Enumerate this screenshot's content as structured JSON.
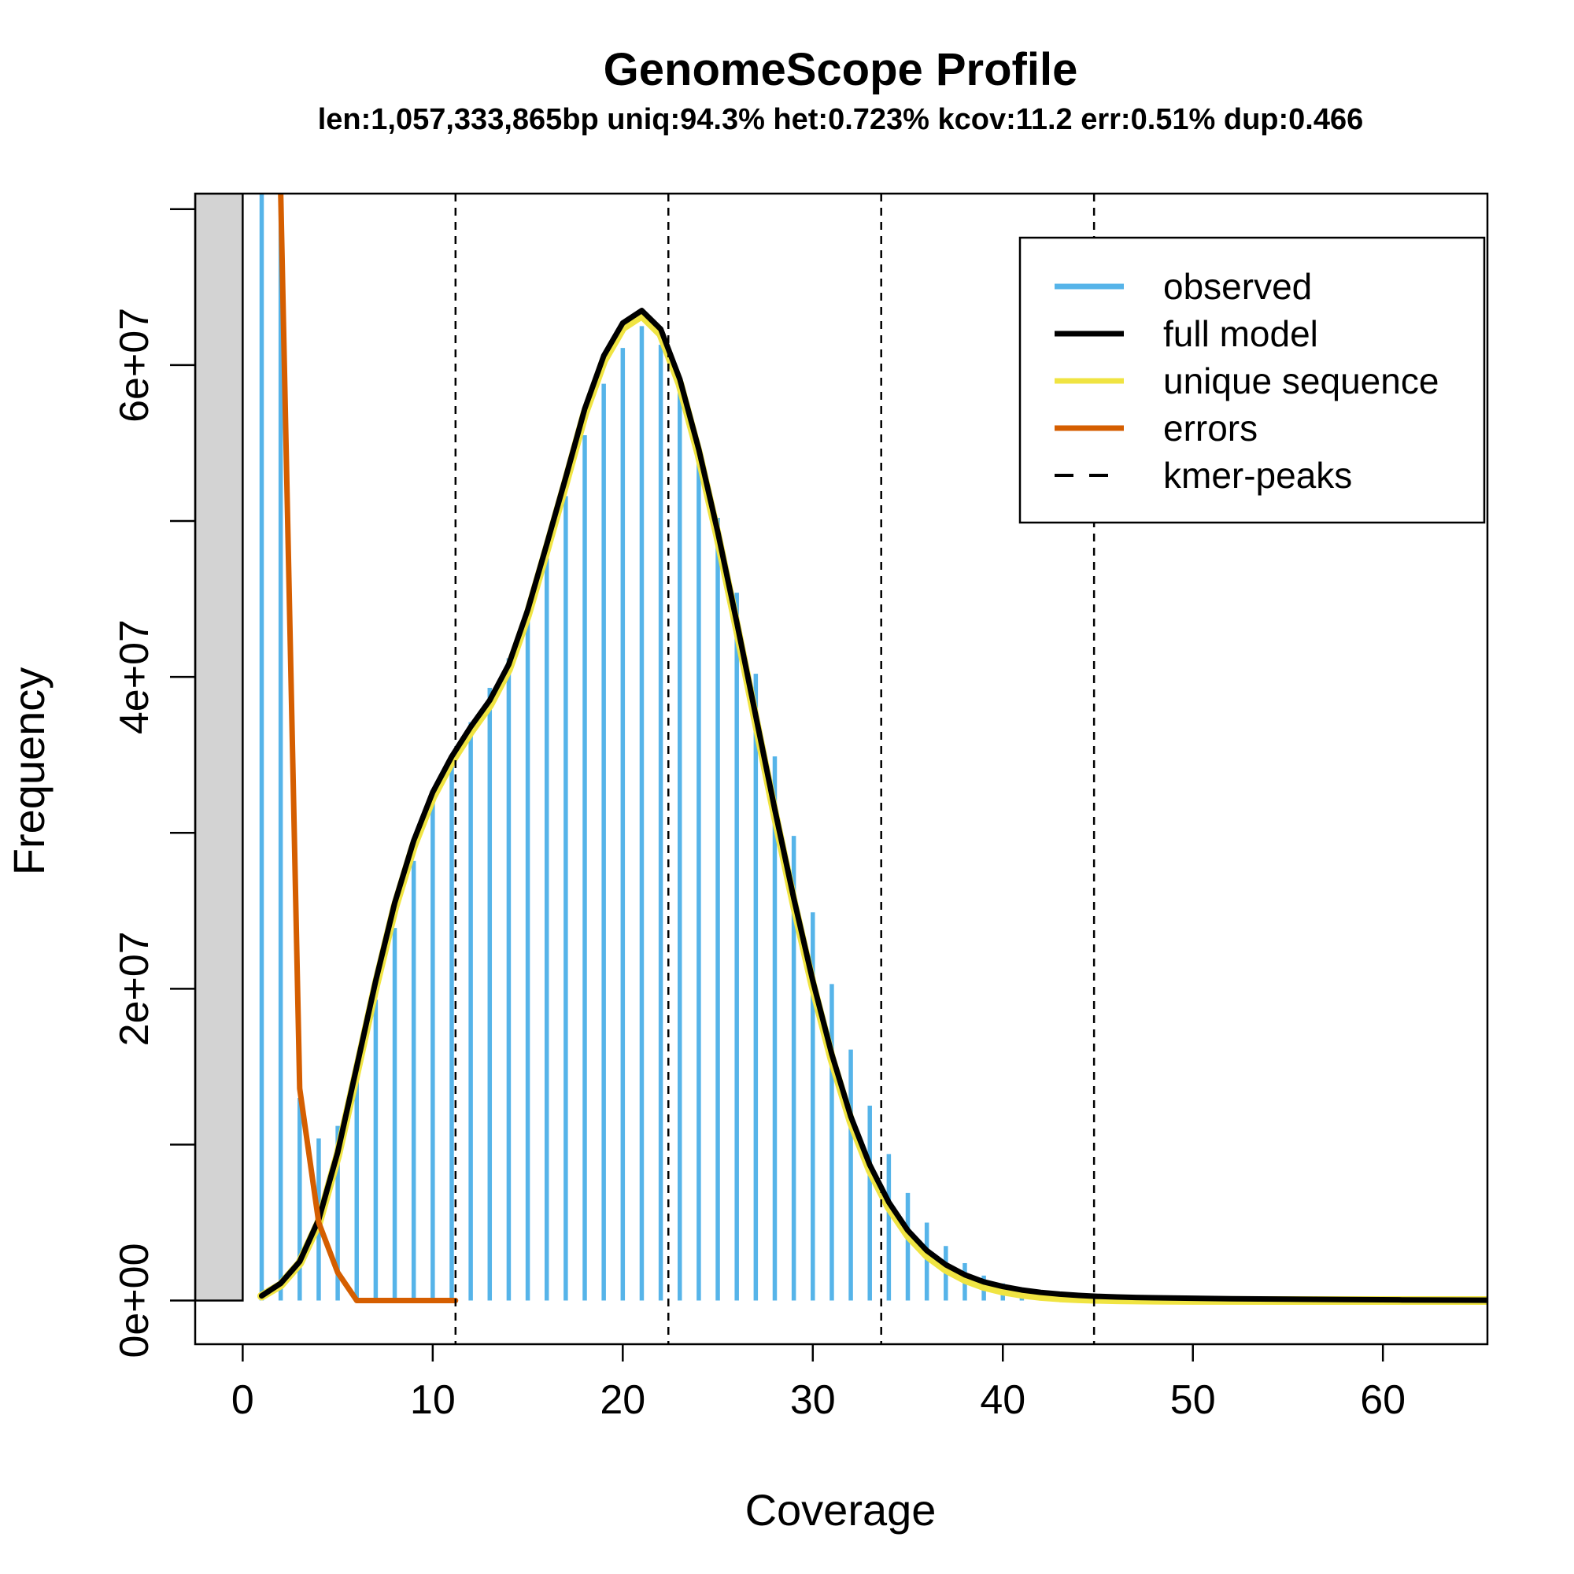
{
  "chart_data": {
    "type": "line",
    "title": "GenomeScope Profile",
    "subtitle": "len:1,057,333,865bp uniq:94.3% het:0.723% kcov:11.2 err:0.51% dup:0.466",
    "xlabel": "Coverage",
    "ylabel": "Frequency",
    "xlim": [
      -2.5,
      65.5
    ],
    "ylim": [
      -2800000,
      71000000
    ],
    "x_ticks": [
      0,
      10,
      20,
      30,
      40,
      50,
      60
    ],
    "y_ticks": [
      0,
      20000000,
      40000000,
      60000000
    ],
    "y_tick_labels": [
      "0e+00",
      "2e+07",
      "4e+07",
      "6e+07"
    ],
    "y_minor_ticks": [
      10000000,
      30000000,
      50000000,
      70000000
    ],
    "excluded_region": [
      -2.5,
      0
    ],
    "legend": {
      "position": "top-right",
      "entries": [
        {
          "label": "observed",
          "color": "#56B4E9",
          "style": "solid"
        },
        {
          "label": "full model",
          "color": "#000000",
          "style": "solid"
        },
        {
          "label": "unique sequence",
          "color": "#F0E442",
          "style": "solid"
        },
        {
          "label": "errors",
          "color": "#D55E00",
          "style": "solid"
        },
        {
          "label": "kmer-peaks",
          "color": "#000000",
          "style": "dashed"
        }
      ]
    },
    "kmer_peaks": [
      11.2,
      22.4,
      33.6,
      44.8
    ],
    "observed": {
      "x": [
        1,
        2,
        3,
        4,
        5,
        6,
        7,
        8,
        9,
        10,
        11,
        12,
        13,
        14,
        15,
        16,
        17,
        18,
        19,
        20,
        21,
        22,
        23,
        24,
        25,
        26,
        27,
        28,
        29,
        30,
        31,
        32,
        33,
        34,
        35,
        36,
        37,
        38,
        39,
        40,
        41,
        42,
        43,
        44,
        45
      ],
      "y": [
        71000000,
        71000000,
        13000000,
        10400000,
        11200000,
        14900000,
        19300000,
        23900000,
        28200000,
        32000000,
        34600000,
        37100000,
        39300000,
        41200000,
        44200000,
        47600000,
        51600000,
        55500000,
        58800000,
        61100000,
        62500000,
        61300000,
        58600000,
        54600000,
        50200000,
        45400000,
        40200000,
        34900000,
        29800000,
        24900000,
        20300000,
        16100000,
        12500000,
        9400000,
        6900000,
        5000000,
        3500000,
        2400000,
        1600000,
        1100000,
        750000,
        500000,
        330000,
        220000,
        150000
      ]
    },
    "full_model": {
      "x": [
        1,
        2,
        3,
        4,
        5,
        6,
        7,
        8,
        9,
        10,
        11,
        12,
        13,
        14,
        15,
        16,
        17,
        18,
        19,
        20,
        21,
        22,
        23,
        24,
        25,
        26,
        27,
        28,
        29,
        30,
        31,
        32,
        33,
        34,
        35,
        36,
        37,
        38,
        39,
        40,
        41,
        42,
        43,
        44,
        45,
        46,
        47,
        48,
        50,
        52,
        55,
        58,
        61,
        65.5
      ],
      "y": [
        300000,
        1100000,
        2500000,
        5200000,
        9500000,
        15000000,
        20500000,
        25500000,
        29500000,
        32600000,
        34900000,
        36800000,
        38500000,
        40800000,
        44300000,
        48500000,
        52800000,
        57200000,
        60600000,
        62700000,
        63500000,
        62300000,
        59100000,
        54600000,
        49300000,
        43500000,
        37500000,
        31500000,
        25800000,
        20500000,
        15800000,
        11800000,
        8700000,
        6300000,
        4500000,
        3200000,
        2300000,
        1650000,
        1200000,
        900000,
        680000,
        520000,
        410000,
        330000,
        270000,
        230000,
        200000,
        180000,
        150000,
        120000,
        90000,
        60000,
        40000,
        20000
      ]
    },
    "unique_sequence": {
      "x": [
        1,
        2,
        3,
        4,
        5,
        6,
        7,
        8,
        9,
        10,
        11,
        12,
        13,
        14,
        15,
        16,
        17,
        18,
        19,
        20,
        21,
        22,
        23,
        24,
        25,
        26,
        27,
        28,
        29,
        30,
        31,
        32,
        33,
        34,
        35,
        36,
        37,
        38,
        39,
        40,
        41,
        42,
        43,
        44,
        45,
        46,
        47,
        48,
        50,
        55,
        65.5
      ],
      "y": [
        280000,
        1000000,
        2400000,
        5000000,
        9300000,
        14700000,
        20200000,
        25200000,
        29200000,
        32300000,
        34600000,
        36500000,
        38200000,
        40500000,
        44000000,
        48200000,
        52500000,
        56900000,
        60300000,
        62400000,
        63200000,
        62000000,
        58800000,
        54300000,
        49000000,
        43200000,
        37200000,
        31200000,
        25500000,
        20200000,
        15500000,
        11500000,
        8400000,
        6000000,
        4200000,
        2900000,
        2000000,
        1350000,
        900000,
        600000,
        400000,
        260000,
        170000,
        110000,
        70000,
        45000,
        30000,
        20000,
        8000,
        2000,
        0
      ]
    },
    "errors": {
      "x": [
        2,
        3,
        4,
        5,
        6,
        7,
        8,
        9,
        10,
        11.2
      ],
      "y": [
        71000000,
        13600000,
        5000000,
        1800000,
        0,
        0,
        0,
        0,
        0,
        0
      ]
    }
  }
}
